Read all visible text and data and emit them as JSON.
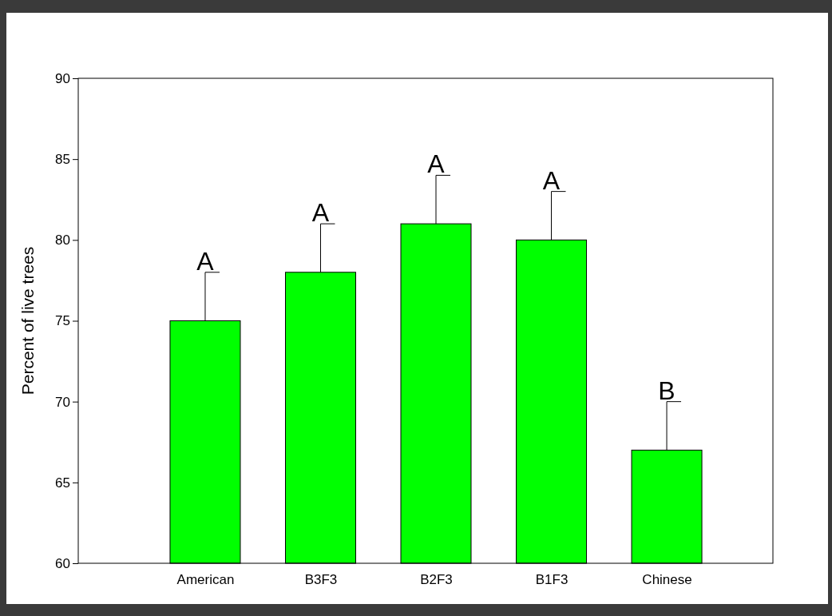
{
  "chart_data": {
    "type": "bar",
    "ylabel": "Percent of live trees",
    "categories": [
      "American",
      "B3F3",
      "B2F3",
      "B1F3",
      "Chinese"
    ],
    "values": [
      75,
      78,
      81,
      80,
      67
    ],
    "errors": [
      [
        75,
        78
      ],
      [
        78,
        81
      ],
      [
        81,
        84
      ],
      [
        80,
        83
      ],
      [
        67,
        70
      ]
    ],
    "color": "#00ff00",
    "ylim": [
      60,
      90
    ],
    "yticks": [
      60,
      65,
      70,
      75,
      80,
      85,
      90
    ],
    "grid": false,
    "annotations": [
      {
        "text": "A",
        "x": "American",
        "y": 78
      },
      {
        "text": "A",
        "x": "B3F3",
        "y": 81
      },
      {
        "text": "A",
        "x": "B2F3",
        "y": 84
      },
      {
        "text": "A",
        "x": "B1F3",
        "y": 83
      },
      {
        "text": "B",
        "x": "Chinese",
        "y": 70
      }
    ]
  }
}
